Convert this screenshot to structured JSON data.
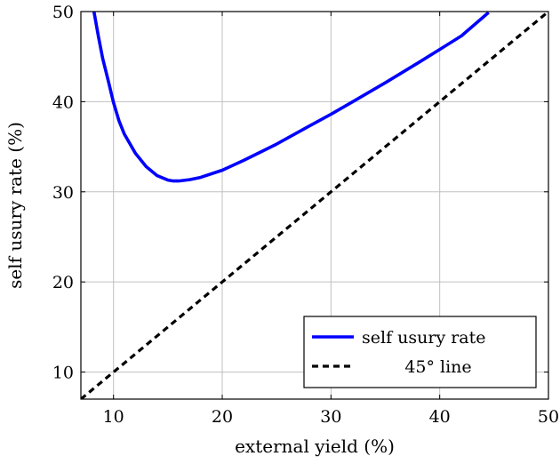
{
  "chart_data": {
    "type": "line",
    "xlabel": "external yield (%)",
    "ylabel": "self usury rate (%)",
    "xlim": [
      7,
      50
    ],
    "ylim": [
      7,
      50
    ],
    "xticks": [
      10,
      20,
      30,
      40,
      50
    ],
    "yticks": [
      10,
      20,
      30,
      40,
      50
    ],
    "grid": true,
    "legend_position": "bottom-right",
    "series": [
      {
        "name": "self usury rate",
        "color": "#0000ff",
        "style": "solid",
        "x": [
          8.2,
          8.6,
          9,
          9.5,
          10,
          10.5,
          11,
          12,
          13,
          14,
          15,
          15.5,
          16,
          17,
          18,
          20,
          22,
          25,
          28,
          30,
          32,
          35,
          38,
          40,
          42,
          44.5
        ],
        "y": [
          50,
          47.3,
          44.8,
          42.4,
          39.9,
          37.9,
          36.4,
          34.3,
          32.8,
          31.8,
          31.3,
          31.2,
          31.2,
          31.35,
          31.6,
          32.4,
          33.5,
          35.3,
          37.3,
          38.6,
          40.0,
          42.1,
          44.3,
          45.8,
          47.3,
          49.9
        ]
      },
      {
        "name": "45° line",
        "color": "#000000",
        "style": "dashed",
        "x": [
          7,
          50
        ],
        "y": [
          7,
          50
        ]
      }
    ]
  }
}
